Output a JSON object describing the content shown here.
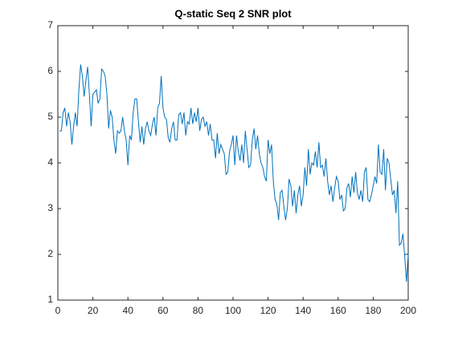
{
  "chart_data": {
    "type": "line",
    "title": "Q-static Seq 2 SNR plot",
    "x": [
      1,
      2,
      3,
      4,
      5,
      6,
      7,
      8,
      9,
      10,
      11,
      12,
      13,
      14,
      15,
      16,
      17,
      18,
      19,
      20,
      21,
      22,
      23,
      24,
      25,
      26,
      27,
      28,
      29,
      30,
      31,
      32,
      33,
      34,
      35,
      36,
      37,
      38,
      39,
      40,
      41,
      42,
      43,
      44,
      45,
      46,
      47,
      48,
      49,
      50,
      51,
      52,
      53,
      54,
      55,
      56,
      57,
      58,
      59,
      60,
      61,
      62,
      63,
      64,
      65,
      66,
      67,
      68,
      69,
      70,
      71,
      72,
      73,
      74,
      75,
      76,
      77,
      78,
      79,
      80,
      81,
      82,
      83,
      84,
      85,
      86,
      87,
      88,
      89,
      90,
      91,
      92,
      93,
      94,
      95,
      96,
      97,
      98,
      99,
      100,
      101,
      102,
      103,
      104,
      105,
      106,
      107,
      108,
      109,
      110,
      111,
      112,
      113,
      114,
      115,
      116,
      117,
      118,
      119,
      120,
      121,
      122,
      123,
      124,
      125,
      126,
      127,
      128,
      129,
      130,
      131,
      132,
      133,
      134,
      135,
      136,
      137,
      138,
      139,
      140,
      141,
      142,
      143,
      144,
      145,
      146,
      147,
      148,
      149,
      150,
      151,
      152,
      153,
      154,
      155,
      156,
      157,
      158,
      159,
      160,
      161,
      162,
      163,
      164,
      165,
      166,
      167,
      168,
      169,
      170,
      171,
      172,
      173,
      174,
      175,
      176,
      177,
      178,
      179,
      180,
      181,
      182,
      183,
      184,
      185,
      186,
      187,
      188,
      189,
      190,
      191,
      192,
      193,
      194,
      195,
      196,
      197,
      198,
      199,
      200
    ],
    "series": [
      {
        "name": "SNR",
        "color": "#0072bd",
        "values": [
          4.7,
          4.7,
          5.1,
          5.2,
          4.8,
          5.1,
          4.9,
          4.4,
          4.8,
          5.1,
          4.8,
          5.6,
          6.15,
          5.9,
          5.45,
          5.8,
          6.1,
          5.5,
          4.8,
          5.5,
          5.55,
          5.6,
          5.3,
          5.4,
          6.05,
          6.0,
          5.9,
          5.5,
          4.75,
          5.15,
          5.0,
          4.5,
          4.2,
          4.7,
          4.65,
          4.7,
          5.0,
          4.7,
          4.5,
          3.95,
          4.6,
          4.5,
          5.1,
          5.4,
          5.4,
          4.9,
          4.45,
          4.8,
          4.4,
          4.75,
          4.9,
          4.7,
          4.6,
          4.85,
          5.0,
          4.6,
          5.2,
          5.3,
          5.9,
          5.2,
          5.0,
          4.95,
          4.55,
          4.45,
          4.75,
          4.9,
          4.5,
          4.5,
          5.05,
          5.1,
          4.85,
          5.1,
          4.6,
          4.9,
          4.85,
          5.2,
          4.85,
          5.1,
          4.9,
          5.2,
          4.7,
          4.95,
          5.0,
          4.8,
          4.9,
          4.6,
          4.85,
          4.5,
          4.5,
          4.1,
          4.65,
          4.2,
          4.4,
          4.3,
          4.2,
          3.75,
          3.8,
          4.25,
          4.4,
          4.6,
          3.95,
          4.6,
          4.25,
          4.05,
          4.4,
          4.0,
          4.7,
          4.3,
          3.9,
          3.95,
          4.5,
          4.75,
          4.3,
          4.6,
          4.2,
          4.0,
          3.9,
          3.7,
          3.6,
          4.5,
          4.2,
          4.4,
          3.6,
          3.2,
          3.1,
          2.75,
          3.35,
          3.4,
          3.05,
          2.75,
          3.0,
          3.65,
          3.5,
          3.05,
          3.4,
          2.9,
          3.3,
          3.5,
          3.05,
          3.3,
          3.9,
          3.5,
          4.3,
          3.75,
          4.0,
          3.95,
          4.25,
          3.9,
          4.45,
          3.9,
          3.95,
          3.7,
          4.1,
          3.6,
          3.3,
          3.5,
          3.15,
          3.45,
          3.7,
          3.6,
          3.2,
          3.3,
          2.95,
          3.0,
          3.45,
          3.55,
          3.25,
          3.7,
          3.35,
          3.8,
          3.35,
          3.2,
          3.4,
          3.15,
          3.8,
          3.9,
          3.2,
          3.15,
          3.3,
          3.5,
          3.7,
          3.55,
          4.4,
          3.8,
          3.75,
          4.3,
          3.4,
          4.1,
          4.0,
          3.65,
          3.3,
          3.4,
          2.9,
          3.6,
          2.2,
          2.25,
          2.45,
          1.95,
          1.4,
          2.0
        ]
      }
    ],
    "xlim": [
      0,
      200
    ],
    "xticks": [
      0,
      20,
      40,
      60,
      80,
      100,
      120,
      140,
      160,
      180,
      200
    ],
    "ylim": [
      1,
      7
    ],
    "yticks": [
      1,
      2,
      3,
      4,
      5,
      6,
      7
    ],
    "grid": false
  }
}
